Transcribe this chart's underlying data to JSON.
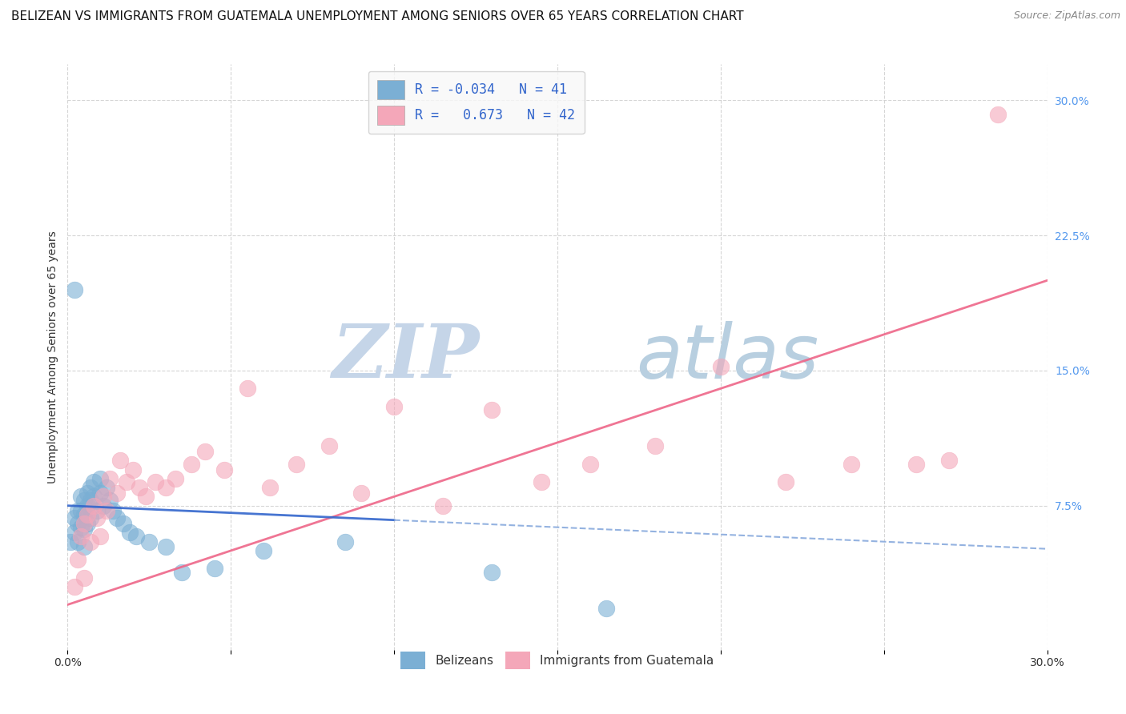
{
  "title": "BELIZEAN VS IMMIGRANTS FROM GUATEMALA UNEMPLOYMENT AMONG SENIORS OVER 65 YEARS CORRELATION CHART",
  "source": "Source: ZipAtlas.com",
  "ylabel": "Unemployment Among Seniors over 65 years",
  "xlim": [
    0.0,
    0.3
  ],
  "ylim": [
    -0.005,
    0.32
  ],
  "legend_r1": "R = -0.034",
  "legend_n1": "N = 41",
  "legend_r2": "R =  0.673",
  "legend_n2": "N = 42",
  "color_blue": "#7BAFD4",
  "color_pink": "#F4A7B9",
  "trendline_blue_solid_color": "#3366CC",
  "trendline_blue_dash_color": "#88AADD",
  "trendline_pink_color": "#EE6688",
  "watermark_zip": "ZIP",
  "watermark_atlas": "atlas",
  "blue_x": [
    0.001,
    0.002,
    0.002,
    0.003,
    0.003,
    0.003,
    0.004,
    0.004,
    0.004,
    0.005,
    0.005,
    0.005,
    0.005,
    0.006,
    0.006,
    0.006,
    0.007,
    0.007,
    0.007,
    0.008,
    0.008,
    0.009,
    0.01,
    0.01,
    0.011,
    0.012,
    0.013,
    0.014,
    0.015,
    0.017,
    0.019,
    0.021,
    0.025,
    0.03,
    0.035,
    0.045,
    0.06,
    0.085,
    0.13,
    0.165,
    0.002
  ],
  "blue_y": [
    0.055,
    0.068,
    0.06,
    0.072,
    0.065,
    0.055,
    0.08,
    0.072,
    0.063,
    0.078,
    0.07,
    0.062,
    0.052,
    0.082,
    0.075,
    0.065,
    0.085,
    0.078,
    0.068,
    0.088,
    0.08,
    0.072,
    0.09,
    0.082,
    0.075,
    0.085,
    0.078,
    0.072,
    0.068,
    0.065,
    0.06,
    0.058,
    0.055,
    0.052,
    0.038,
    0.04,
    0.05,
    0.055,
    0.038,
    0.018,
    0.195
  ],
  "pink_x": [
    0.002,
    0.003,
    0.004,
    0.005,
    0.005,
    0.006,
    0.007,
    0.008,
    0.009,
    0.01,
    0.011,
    0.012,
    0.013,
    0.015,
    0.016,
    0.018,
    0.02,
    0.022,
    0.024,
    0.027,
    0.03,
    0.033,
    0.038,
    0.042,
    0.048,
    0.055,
    0.062,
    0.07,
    0.08,
    0.09,
    0.1,
    0.115,
    0.13,
    0.145,
    0.16,
    0.18,
    0.2,
    0.22,
    0.24,
    0.26,
    0.27,
    0.285
  ],
  "pink_y": [
    0.03,
    0.045,
    0.058,
    0.035,
    0.065,
    0.07,
    0.055,
    0.075,
    0.068,
    0.058,
    0.08,
    0.072,
    0.09,
    0.082,
    0.1,
    0.088,
    0.095,
    0.085,
    0.08,
    0.088,
    0.085,
    0.09,
    0.098,
    0.105,
    0.095,
    0.14,
    0.085,
    0.098,
    0.108,
    0.082,
    0.13,
    0.075,
    0.128,
    0.088,
    0.098,
    0.108,
    0.152,
    0.088,
    0.098,
    0.098,
    0.1,
    0.292
  ],
  "background_color": "#ffffff",
  "grid_color": "#cccccc",
  "legend_box_color": "#f8f8f8",
  "watermark_color_zip": "#c5d5e8",
  "watermark_color_atlas": "#b8cfe0",
  "title_fontsize": 11,
  "source_fontsize": 9,
  "axis_label_fontsize": 10,
  "right_tick_color": "#5599EE"
}
